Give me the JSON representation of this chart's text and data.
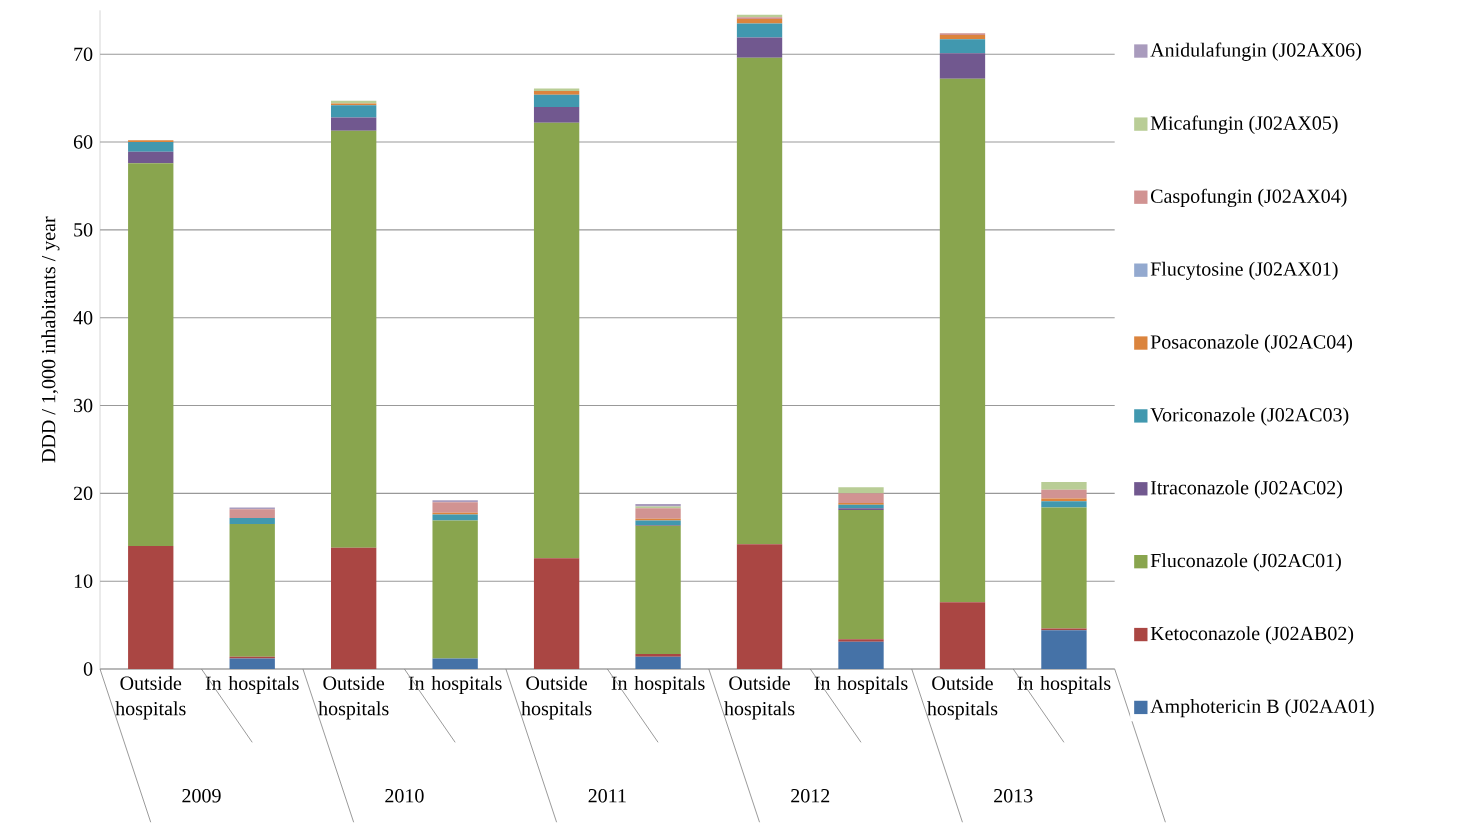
{
  "chart_data": {
    "type": "bar",
    "stacked": true,
    "ylabel": "DDD / 1,000 inhabitants / year",
    "categories": [
      "Outside hospitals",
      "In hospitals",
      "Outside hospitals",
      "In hospitals",
      "Outside hospitals",
      "In hospitals",
      "Outside hospitals",
      "In hospitals",
      "Outside hospitals",
      "In hospitals"
    ],
    "annotations": [
      "2009",
      "2010",
      "2011",
      "2012",
      "2013"
    ],
    "ylim": [
      0,
      75
    ],
    "yticks": [
      0,
      10,
      20,
      30,
      40,
      50,
      60,
      70
    ],
    "grid": "y",
    "legend": "right",
    "series": [
      {
        "name": "Amphotericin B (J02AA01)",
        "color": "#4572a7",
        "values": [
          0,
          1.2,
          0,
          1.2,
          0,
          1.4,
          0,
          3.1,
          0,
          4.4
        ]
      },
      {
        "name": "Ketoconazole (J02AB02)",
        "color": "#aa4643",
        "values": [
          14.0,
          0.2,
          13.8,
          0,
          12.6,
          0.3,
          14.2,
          0.3,
          7.6,
          0.2
        ]
      },
      {
        "name": "Fluconazole (J02AC01)",
        "color": "#89a54e",
        "values": [
          43.6,
          15.1,
          47.5,
          15.7,
          49.6,
          14.6,
          55.4,
          14.7,
          59.6,
          13.8
        ]
      },
      {
        "name": "Itraconazole (J02AC02)",
        "color": "#71588f",
        "values": [
          1.3,
          0,
          1.5,
          0,
          1.8,
          0.1,
          2.3,
          0.2,
          2.9,
          0
        ]
      },
      {
        "name": "Voriconazole (J02AC03)",
        "color": "#4198af",
        "values": [
          1.1,
          0.7,
          1.4,
          0.7,
          1.4,
          0.5,
          1.6,
          0.4,
          1.6,
          0.7
        ]
      },
      {
        "name": "Posaconazole (J02AC04)",
        "color": "#db843d",
        "values": [
          0.2,
          0,
          0.2,
          0.2,
          0.4,
          0.2,
          0.5,
          0.2,
          0.5,
          0.3
        ]
      },
      {
        "name": "Flucytosine (J02AX01)",
        "color": "#93a9cf",
        "values": [
          0,
          0,
          0,
          0,
          0,
          0,
          0,
          0,
          0,
          0
        ]
      },
      {
        "name": "Caspofungin (J02AX04)",
        "color": "#d19392",
        "values": [
          0,
          1.0,
          0,
          1.2,
          0,
          1.2,
          0.2,
          1.1,
          0.2,
          1.0
        ]
      },
      {
        "name": "Micafungin (J02AX05)",
        "color": "#b9cd96",
        "values": [
          0,
          0,
          0.3,
          0,
          0.3,
          0.2,
          0.3,
          0.7,
          0,
          0.9
        ]
      },
      {
        "name": "Anidulafungin (J02AX06)",
        "color": "#a99bbd",
        "values": [
          0,
          0.2,
          0,
          0.2,
          0,
          0.3,
          0,
          0,
          0,
          0
        ]
      }
    ]
  }
}
